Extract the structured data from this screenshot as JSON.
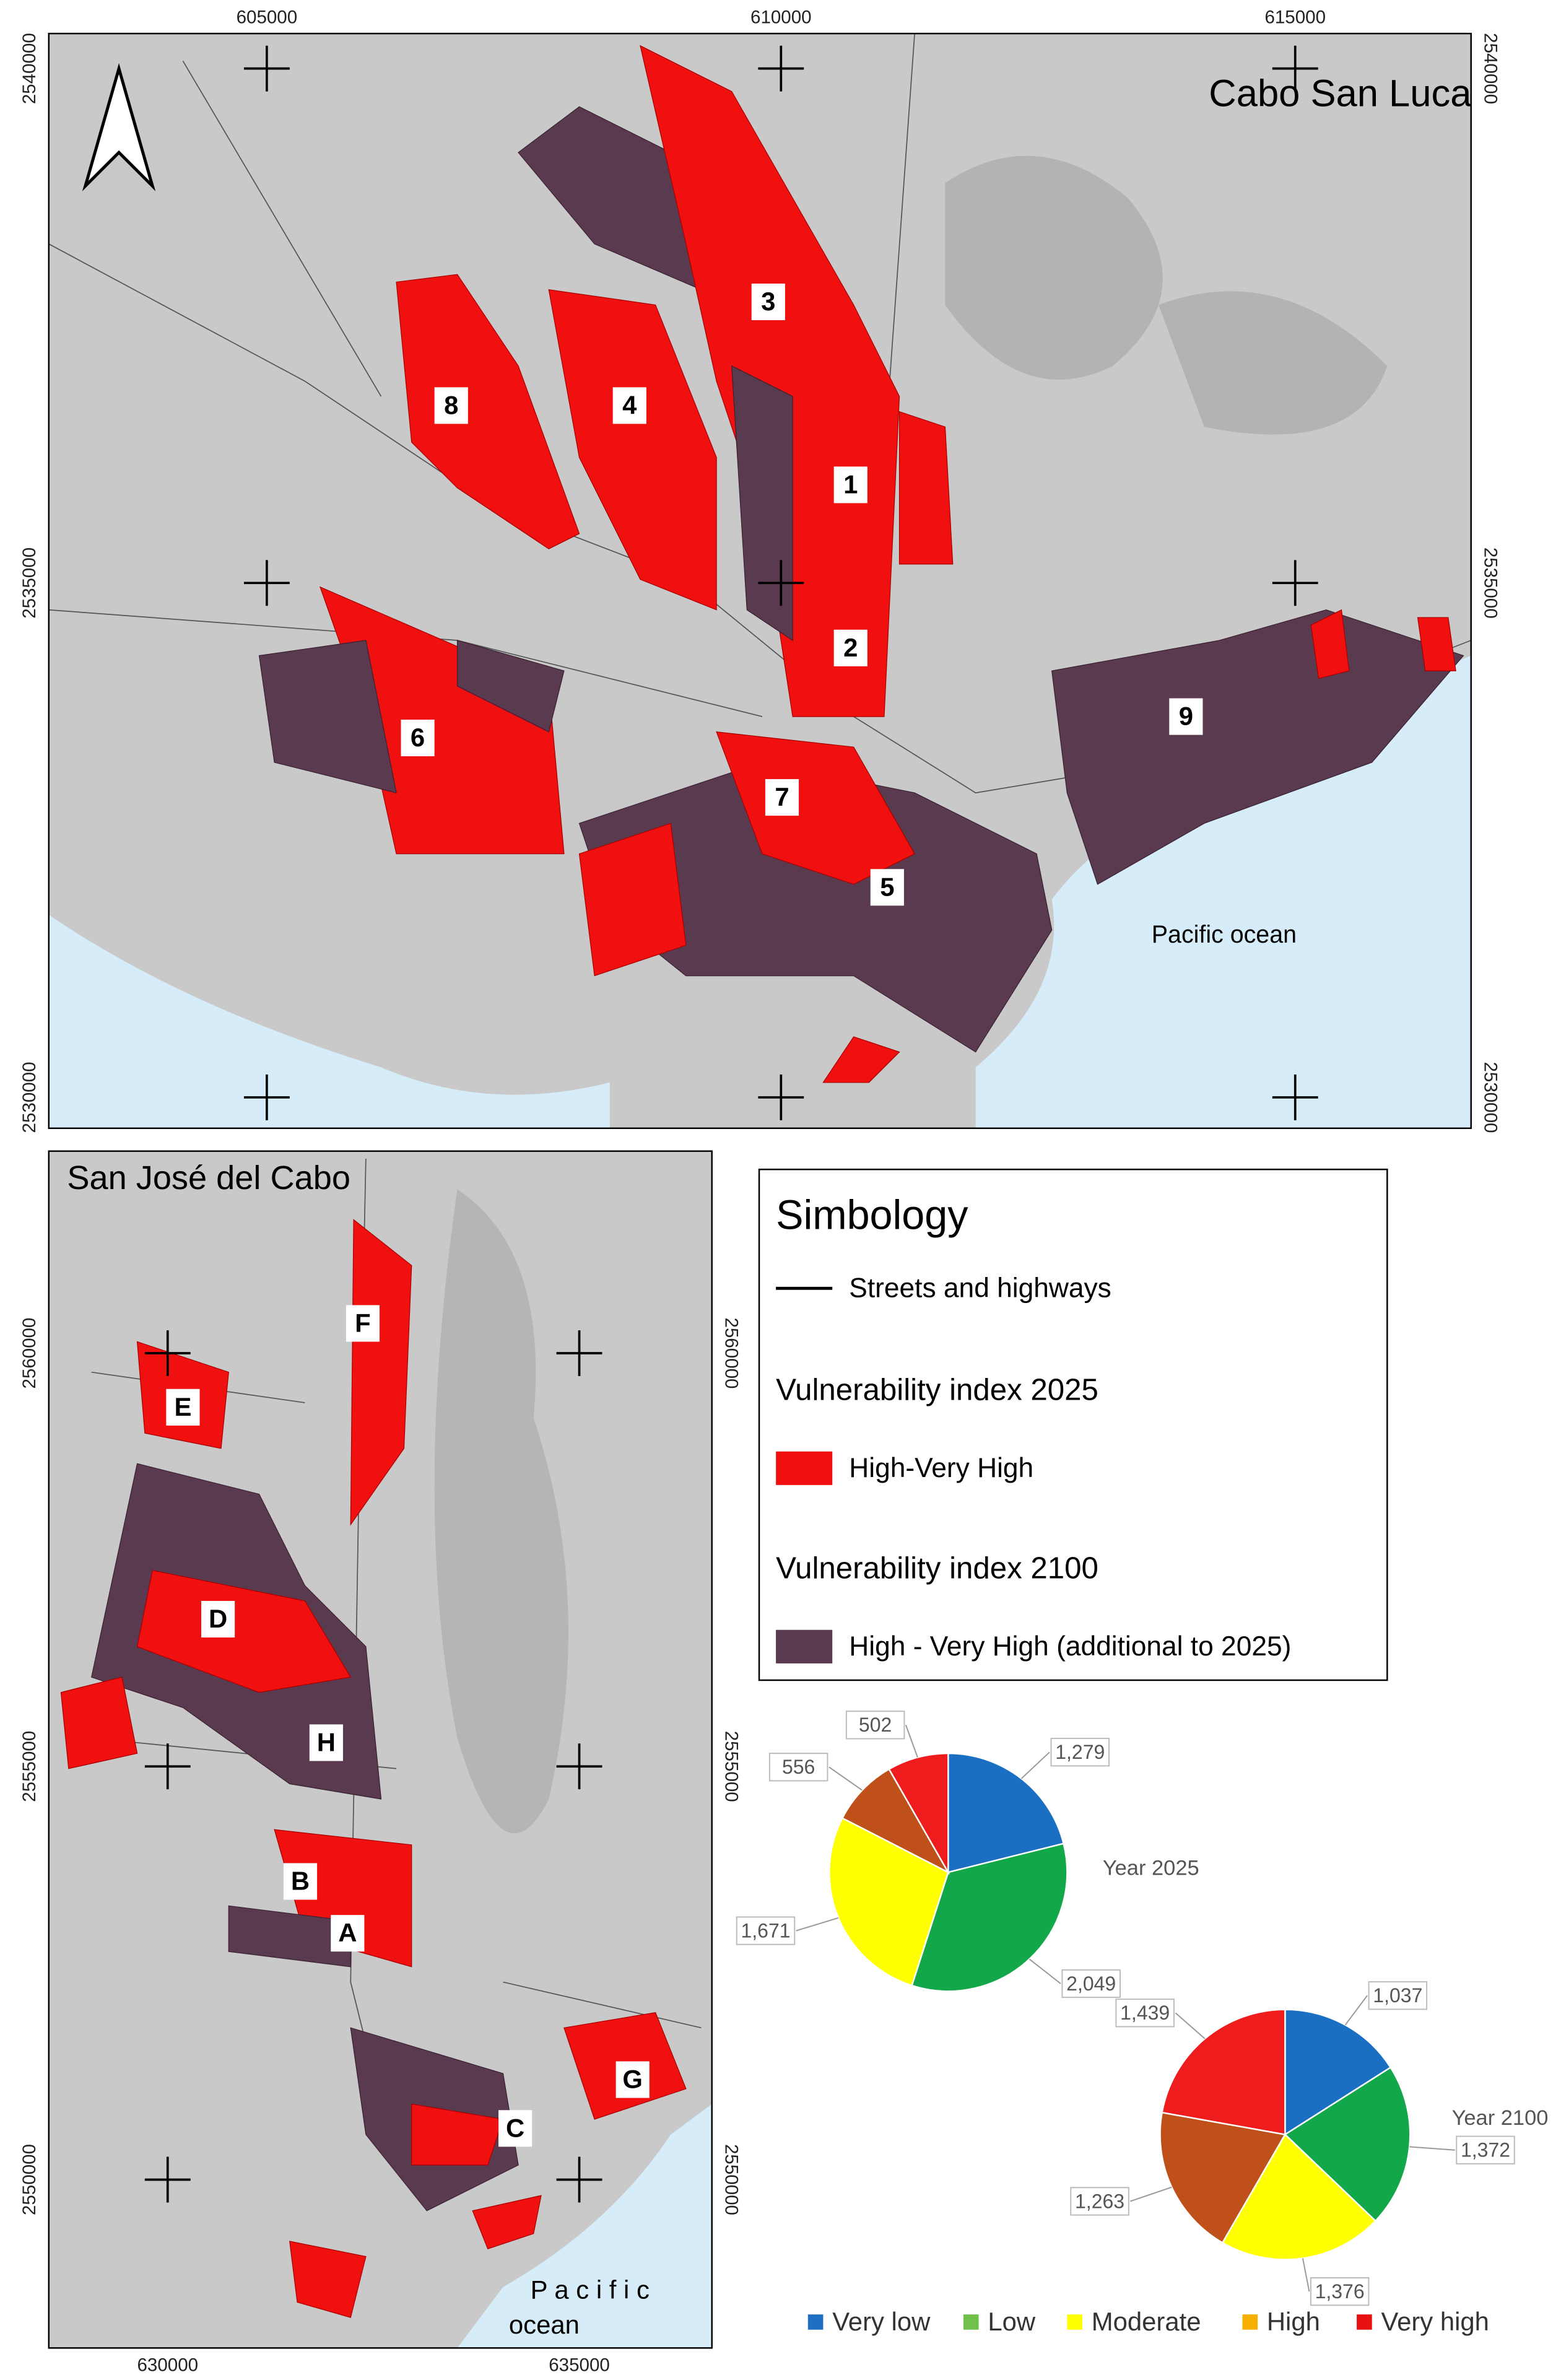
{
  "maps": [
    {
      "title": "Cabo San Lucas",
      "ocean_label": [
        "Pacific ocean"
      ],
      "area_labels": [
        "1",
        "2",
        "3",
        "4",
        "5",
        "6",
        "7",
        "8",
        "9"
      ],
      "xlim": [
        602880,
        616710
      ],
      "ylim": [
        2529700,
        2540340
      ],
      "xticks": [
        605000,
        610000,
        615000
      ],
      "yticks": [
        2530000,
        2535000,
        2540000
      ]
    },
    {
      "title": "San José del Cabo",
      "ocean_label": [
        "P a c i f i c",
        "ocean"
      ],
      "area_labels": [
        "A",
        "B",
        "C",
        "D",
        "E",
        "F",
        "G",
        "H"
      ],
      "xlim": [
        628556,
        636611
      ],
      "ylim": [
        2547963,
        2562445
      ],
      "xticks": [
        630000,
        635000
      ],
      "yticks": [
        2550000,
        2555000,
        2560000
      ]
    }
  ],
  "legend": {
    "title": "Simbology",
    "streets": "Streets and highways",
    "index_2025": "Vulnerability index 2025",
    "label_2025": "High-Very High",
    "index_2100": "Vulnerability index 2100",
    "label_2100": "High - Very High (additional to 2025)"
  },
  "chart_data": [
    {
      "type": "pie",
      "title": "Year 2025",
      "categories": [
        "Very low",
        "Low",
        "Moderate",
        "High",
        "Very high"
      ],
      "values": [
        1279,
        2049,
        1671,
        556,
        502
      ],
      "value_labels": [
        "1,279",
        "2,049",
        "1,671",
        "556",
        "502"
      ],
      "colors": [
        "#1a6fc2",
        "#12a84a",
        "#ffff00",
        "#c0501a",
        "#ee1c1c"
      ],
      "legend_colors": [
        "#1f6fc4",
        "#70c04a",
        "#ffff00",
        "#f5b000",
        "#e81010"
      ]
    },
    {
      "type": "pie",
      "title": "Year 2100",
      "categories": [
        "Very low",
        "Low",
        "Moderate",
        "High",
        "Very high"
      ],
      "values": [
        1037,
        1372,
        1376,
        1263,
        1439
      ],
      "value_labels": [
        "1,037",
        "1,372",
        "1,376",
        "1,263",
        "1,439"
      ],
      "colors": [
        "#1a6fc2",
        "#12a84a",
        "#ffff00",
        "#c0501a",
        "#ee1c1c"
      ]
    }
  ]
}
